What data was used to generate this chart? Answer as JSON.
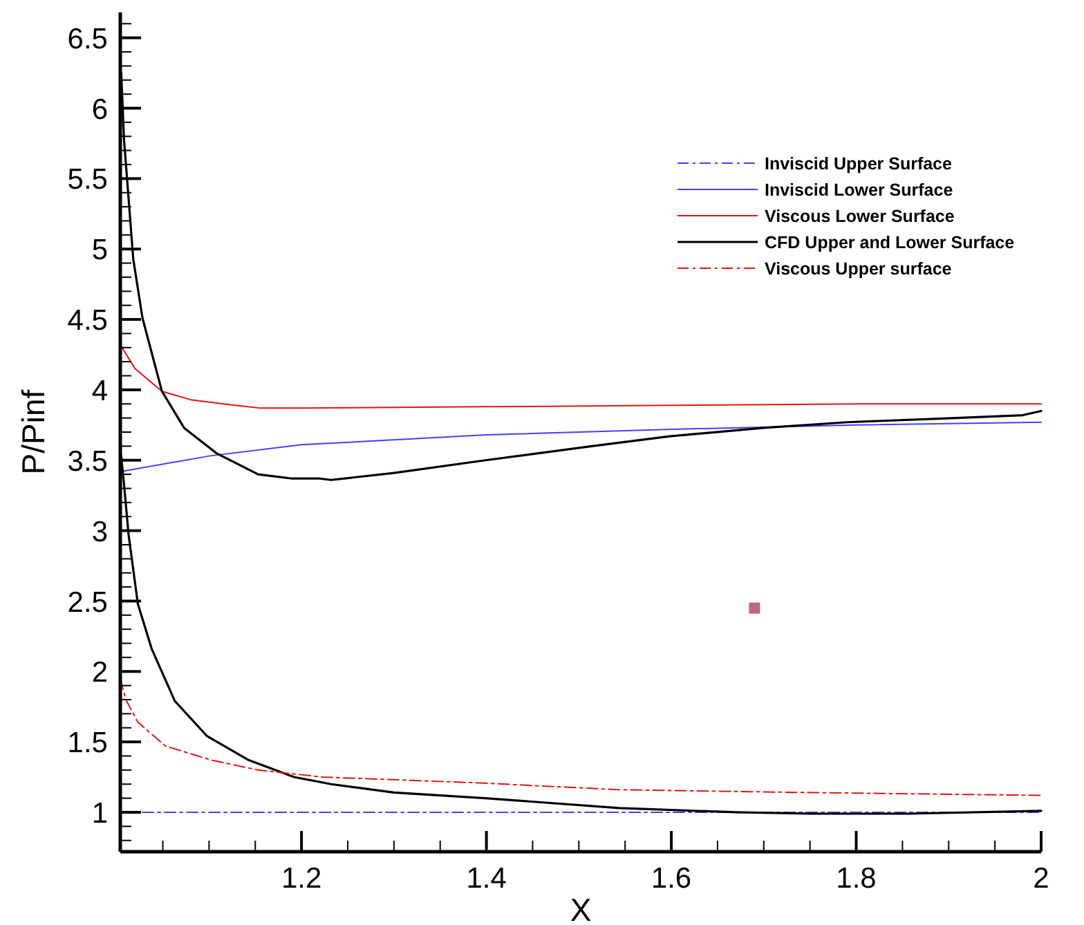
{
  "chart_data": {
    "type": "line",
    "xlabel": "X",
    "ylabel": "P/Pinf",
    "xlim": [
      1.004,
      2
    ],
    "ylim": [
      0.72,
      6.68
    ],
    "xticks": [
      {
        "value": 1.05,
        "label": null
      },
      {
        "value": 1.1,
        "label": null
      },
      {
        "value": 1.15,
        "label": null
      },
      1.2,
      {
        "value": 1.25,
        "label": null
      },
      {
        "value": 1.3,
        "label": null
      },
      {
        "value": 1.35,
        "label": null
      },
      1.4,
      {
        "value": 1.45,
        "label": null
      },
      {
        "value": 1.5,
        "label": null
      },
      {
        "value": 1.55,
        "label": null
      },
      1.6,
      {
        "value": 1.65,
        "label": null
      },
      {
        "value": 1.7,
        "label": null
      },
      {
        "value": 1.75,
        "label": null
      },
      1.8,
      {
        "value": 1.85,
        "label": null
      },
      {
        "value": 1.9,
        "label": null
      },
      {
        "value": 1.95,
        "label": null
      },
      2
    ],
    "yticks": [
      {
        "value": 0.8,
        "label": null
      },
      {
        "value": 0.9,
        "label": null
      },
      1,
      {
        "value": 1.1,
        "label": null
      },
      {
        "value": 1.2,
        "label": null
      },
      {
        "value": 1.3,
        "label": null
      },
      {
        "value": 1.4,
        "label": null
      },
      1.5,
      {
        "value": 1.6,
        "label": null
      },
      {
        "value": 1.7,
        "label": null
      },
      {
        "value": 1.8,
        "label": null
      },
      {
        "value": 1.9,
        "label": null
      },
      2,
      {
        "value": 2.1,
        "label": null
      },
      {
        "value": 2.2,
        "label": null
      },
      {
        "value": 2.3,
        "label": null
      },
      {
        "value": 2.4,
        "label": null
      },
      2.5,
      {
        "value": 2.6,
        "label": null
      },
      {
        "value": 2.7,
        "label": null
      },
      {
        "value": 2.8,
        "label": null
      },
      {
        "value": 2.9,
        "label": null
      },
      3,
      {
        "value": 3.1,
        "label": null
      },
      {
        "value": 3.2,
        "label": null
      },
      {
        "value": 3.3,
        "label": null
      },
      {
        "value": 3.4,
        "label": null
      },
      3.5,
      {
        "value": 3.6,
        "label": null
      },
      {
        "value": 3.7,
        "label": null
      },
      {
        "value": 3.8,
        "label": null
      },
      {
        "value": 3.9,
        "label": null
      },
      4,
      {
        "value": 4.1,
        "label": null
      },
      {
        "value": 4.2,
        "label": null
      },
      {
        "value": 4.3,
        "label": null
      },
      {
        "value": 4.4,
        "label": null
      },
      4.5,
      {
        "value": 4.6,
        "label": null
      },
      {
        "value": 4.7,
        "label": null
      },
      {
        "value": 4.8,
        "label": null
      },
      {
        "value": 4.9,
        "label": null
      },
      5,
      {
        "value": 5.1,
        "label": null
      },
      {
        "value": 5.2,
        "label": null
      },
      {
        "value": 5.3,
        "label": null
      },
      {
        "value": 5.4,
        "label": null
      },
      5.5,
      {
        "value": 5.6,
        "label": null
      },
      {
        "value": 5.7,
        "label": null
      },
      {
        "value": 5.8,
        "label": null
      },
      {
        "value": 5.9,
        "label": null
      },
      6,
      {
        "value": 6.1,
        "label": null
      },
      {
        "value": 6.2,
        "label": null
      },
      {
        "value": 6.3,
        "label": null
      },
      {
        "value": 6.4,
        "label": null
      },
      6.5,
      {
        "value": 6.6,
        "label": null
      }
    ],
    "grid": false,
    "legend": "top right",
    "series": [
      {
        "name": "Inviscid Upper Surface",
        "color": "#4040ff",
        "line_style": "dashed",
        "x": [
          1.028,
          1.5,
          2
        ],
        "values": [
          1,
          1,
          1
        ]
      },
      {
        "name": "Inviscid Lower Surface",
        "color": "#4040ff",
        "line_style": "solid",
        "x": [
          1.005,
          1.1,
          1.2,
          1.4,
          1.6,
          1.8,
          2
        ],
        "values": [
          3.42,
          3.53,
          3.61,
          3.68,
          3.72,
          3.75,
          3.77
        ]
      },
      {
        "name": "Viscous Lower Surface",
        "color": "#e81010",
        "line_style": "solid",
        "x": [
          1.005,
          1.02,
          1.049,
          1.08,
          1.128,
          1.156,
          1.2,
          1.4,
          1.6,
          1.8,
          2
        ],
        "values": [
          4.31,
          4.15,
          3.99,
          3.93,
          3.89,
          3.87,
          3.87,
          3.88,
          3.89,
          3.9,
          3.9
        ]
      },
      {
        "name": "CFD Upper and Lower Surface",
        "color": "#000000",
        "line_style": "solid",
        "x": [
          1.005,
          1.008,
          1.018,
          1.028,
          1.049,
          1.073,
          1.108,
          1.138,
          1.153,
          1.19,
          1.22,
          1.232,
          1.3,
          1.399,
          1.514,
          1.598,
          1.7,
          1.79,
          1.908,
          1.98,
          2
        ],
        "values": [
          6.25,
          5.78,
          4.93,
          4.51,
          3.99,
          3.73,
          3.55,
          3.45,
          3.4,
          3.37,
          3.37,
          3.36,
          3.41,
          3.5,
          3.6,
          3.67,
          3.73,
          3.77,
          3.8,
          3.82,
          3.85
        ]
      },
      {
        "color": "#000000",
        "line_style": "solid",
        "x": [
          1.005,
          1.008,
          1.013,
          1.023,
          1.038,
          1.063,
          1.098,
          1.143,
          1.192,
          1.232,
          1.3,
          1.399,
          1.544,
          1.67,
          1.752,
          1.856,
          2
        ],
        "values": [
          3.53,
          3.33,
          2.97,
          2.48,
          2.16,
          1.79,
          1.54,
          1.37,
          1.25,
          1.2,
          1.14,
          1.1,
          1.03,
          1,
          0.99,
          0.99,
          1.01
        ]
      },
      {
        "name": "Viscous Upper surface",
        "color": "#e81010",
        "line_style": "dashed",
        "x": [
          1.004,
          1.01,
          1.023,
          1.053,
          1.103,
          1.153,
          1.223,
          1.388,
          1.544,
          1.752,
          2
        ],
        "values": [
          1.95,
          1.8,
          1.64,
          1.47,
          1.37,
          1.3,
          1.25,
          1.21,
          1.16,
          1.14,
          1.12
        ]
      },
      {
        "type": "scatter",
        "marker": "square",
        "color": "#c06680",
        "x": [
          1.69
        ],
        "values": [
          2.45
        ]
      }
    ]
  }
}
